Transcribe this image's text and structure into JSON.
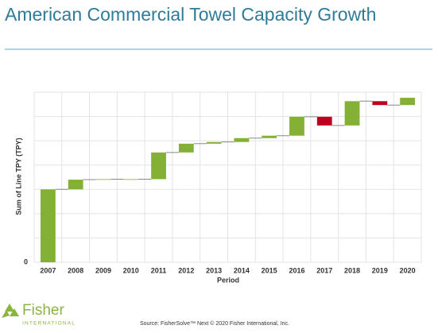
{
  "chart_data": {
    "type": "waterfall",
    "title": "American Commercial Towel Capacity Growth",
    "x_label": "Period",
    "y_label": "Sum of Line TPY (TPY)",
    "categories": [
      "2007",
      "2008",
      "2009",
      "2010",
      "2011",
      "2012",
      "2013",
      "2014",
      "2015",
      "2016",
      "2017",
      "2018",
      "2019",
      "2020"
    ],
    "values": [
      3.0,
      0.4,
      0.02,
      0,
      1.1,
      0.36,
      0.07,
      0.16,
      0.1,
      0.78,
      -0.36,
      1.0,
      -0.16,
      0.3
    ],
    "increase_color": "#84b135",
    "decrease_color": "#c00020",
    "ylim": [
      0,
      7
    ],
    "yticks": [
      0,
      {
        "value": 1,
        "label": null
      },
      {
        "value": 2,
        "label": null
      },
      {
        "value": 3,
        "label": null
      },
      {
        "value": 4,
        "label": null
      },
      {
        "value": 5,
        "label": null
      },
      {
        "value": 6,
        "label": null
      },
      {
        "value": 7,
        "label": null
      }
    ],
    "grid": true
  },
  "logo": {
    "name": "Fisher",
    "subtitle": "INTERNATIONAL"
  },
  "source": "Source: FisherSolve™ Next © 2020 Fisher International, Inc."
}
